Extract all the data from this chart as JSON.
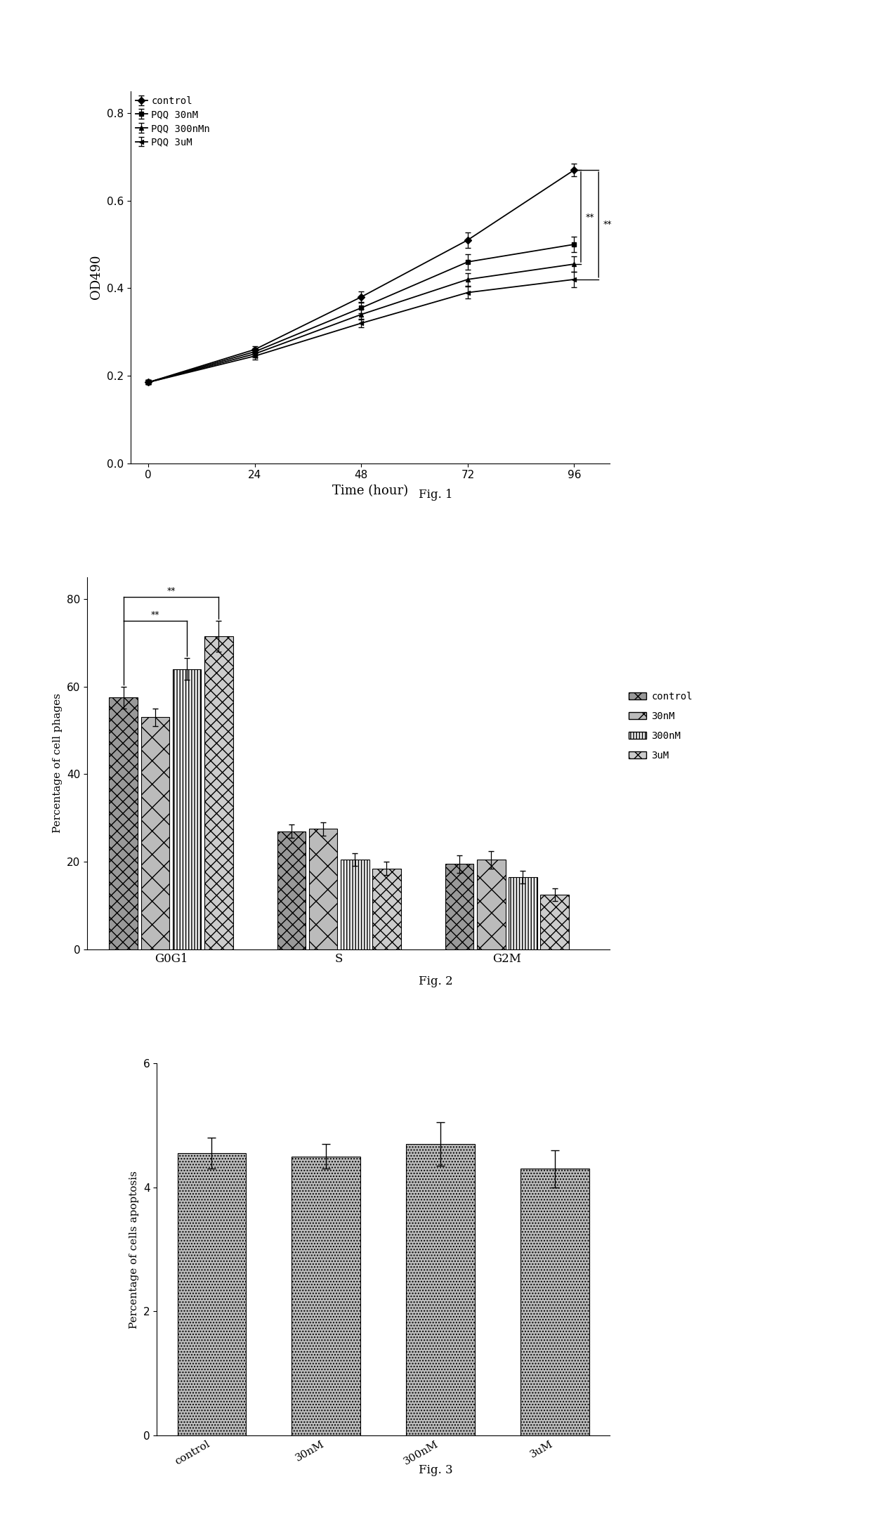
{
  "fig1": {
    "xlabel": "Time (hour)",
    "ylabel": "OD490",
    "caption": "Fig. 1",
    "x": [
      0,
      24,
      48,
      72,
      96
    ],
    "series_order": [
      "control",
      "PQQ 30nM",
      "PQQ 300nMn",
      "PQQ 3uM"
    ],
    "series": {
      "control": {
        "y": [
          0.185,
          0.26,
          0.38,
          0.51,
          0.67
        ],
        "err": [
          0.005,
          0.008,
          0.012,
          0.018,
          0.015
        ]
      },
      "PQQ 30nM": {
        "y": [
          0.185,
          0.255,
          0.355,
          0.46,
          0.5
        ],
        "err": [
          0.005,
          0.008,
          0.012,
          0.018,
          0.018
        ]
      },
      "PQQ 300nMn": {
        "y": [
          0.185,
          0.25,
          0.34,
          0.42,
          0.455
        ],
        "err": [
          0.005,
          0.008,
          0.012,
          0.015,
          0.018
        ]
      },
      "PQQ 3uM": {
        "y": [
          0.185,
          0.245,
          0.32,
          0.39,
          0.42
        ],
        "err": [
          0.005,
          0.008,
          0.01,
          0.013,
          0.018
        ]
      }
    },
    "ylim": [
      0.0,
      0.85
    ],
    "yticks": [
      0.0,
      0.2,
      0.4,
      0.6,
      0.8
    ],
    "xticks": [
      0,
      24,
      48,
      72,
      96
    ]
  },
  "fig2": {
    "ylabel": "Percentage of cell phages",
    "caption": "Fig. 2",
    "groups": [
      "G0G1",
      "S",
      "G2M"
    ],
    "categories": [
      "control",
      "30nM",
      "300nM",
      "3uM"
    ],
    "data": {
      "G0G1": {
        "control": 57.5,
        "30nM": 53.0,
        "300nM": 64.0,
        "3uM": 71.5
      },
      "S": {
        "control": 27.0,
        "30nM": 27.5,
        "300nM": 20.5,
        "3uM": 18.5
      },
      "G2M": {
        "control": 19.5,
        "30nM": 20.5,
        "300nM": 16.5,
        "3uM": 12.5
      }
    },
    "errors": {
      "G0G1": {
        "control": 2.5,
        "30nM": 2.0,
        "300nM": 2.5,
        "3uM": 3.5
      },
      "S": {
        "control": 1.5,
        "30nM": 1.5,
        "300nM": 1.5,
        "3uM": 1.5
      },
      "G2M": {
        "control": 2.0,
        "30nM": 2.0,
        "300nM": 1.5,
        "3uM": 1.5
      }
    },
    "ylim": [
      0,
      85
    ],
    "yticks": [
      0,
      20,
      40,
      60,
      80
    ]
  },
  "fig3": {
    "ylabel": "Percentage of cells apoptosis",
    "caption": "Fig. 3",
    "categories": [
      "control",
      "30nM",
      "300nM",
      "3uM"
    ],
    "values": [
      4.55,
      4.5,
      4.7,
      4.3
    ],
    "errors": [
      0.25,
      0.2,
      0.35,
      0.3
    ],
    "ylim": [
      0,
      6
    ],
    "yticks": [
      0,
      2,
      4,
      6
    ]
  },
  "background_color": "#ffffff"
}
